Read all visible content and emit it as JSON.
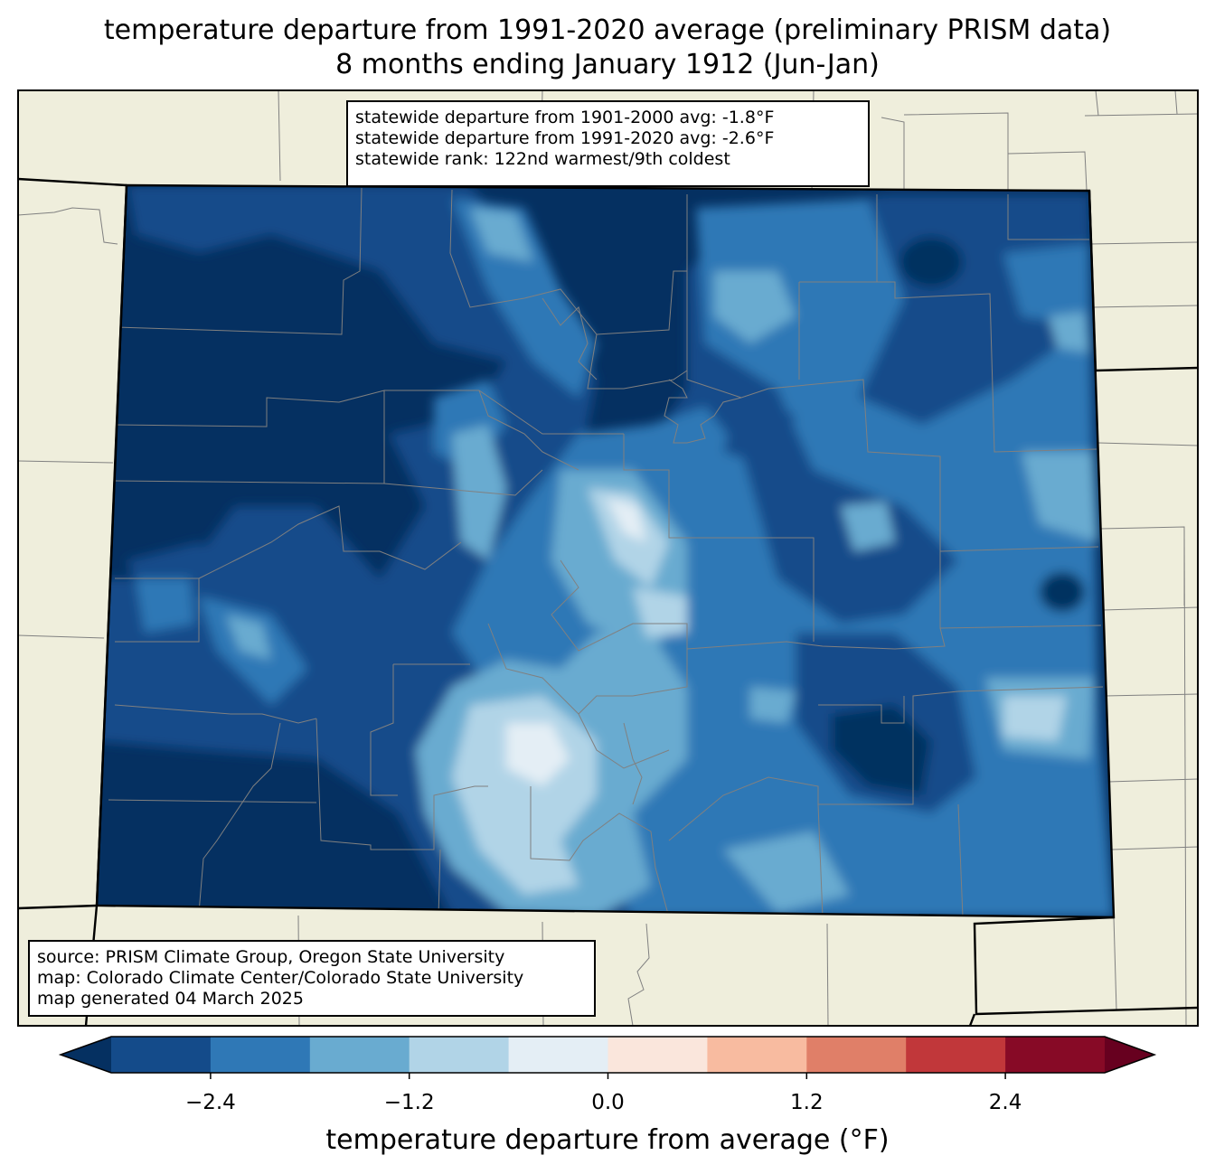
{
  "title": {
    "line1": "temperature departure from 1991-2020 average (preliminary PRISM data)",
    "line2": "8 months ending January 1912 (Jun-Jan)"
  },
  "stats": {
    "line1": "statewide departure from 1901-2000 avg: -1.8°F",
    "line2": "statewide departure from 1991-2020 avg: -2.6°F",
    "line3": "statewide rank: 122nd warmest/9th coldest"
  },
  "credits": {
    "line1": "source: PRISM Climate Group, Oregon State University",
    "line2": "map: Colorado Climate Center/Colorado State University",
    "line3": "map generated 04 March 2025"
  },
  "colorbar": {
    "label": "temperature departure from average (°F)",
    "ticks": [
      "−2.4",
      "−1.2",
      "0.0",
      "1.2",
      "2.4"
    ],
    "tick_values": [
      -2.4,
      -1.2,
      0.0,
      1.2,
      2.4
    ],
    "levels": [
      -3.0,
      -2.4,
      -1.8,
      -1.2,
      -0.6,
      0.0,
      0.6,
      1.2,
      1.8,
      2.4,
      3.0
    ],
    "colors": [
      "#053061",
      "#144b8a",
      "#2f78b6",
      "#69abd0",
      "#b1d4e7",
      "#e4eef5",
      "#fae6dc",
      "#f8bba0",
      "#e07f68",
      "#c1373a",
      "#870a26",
      "#67001f"
    ]
  },
  "palette": {
    "background_land": "#efeedc",
    "state_border": "#000000",
    "county_border": "#808080"
  }
}
